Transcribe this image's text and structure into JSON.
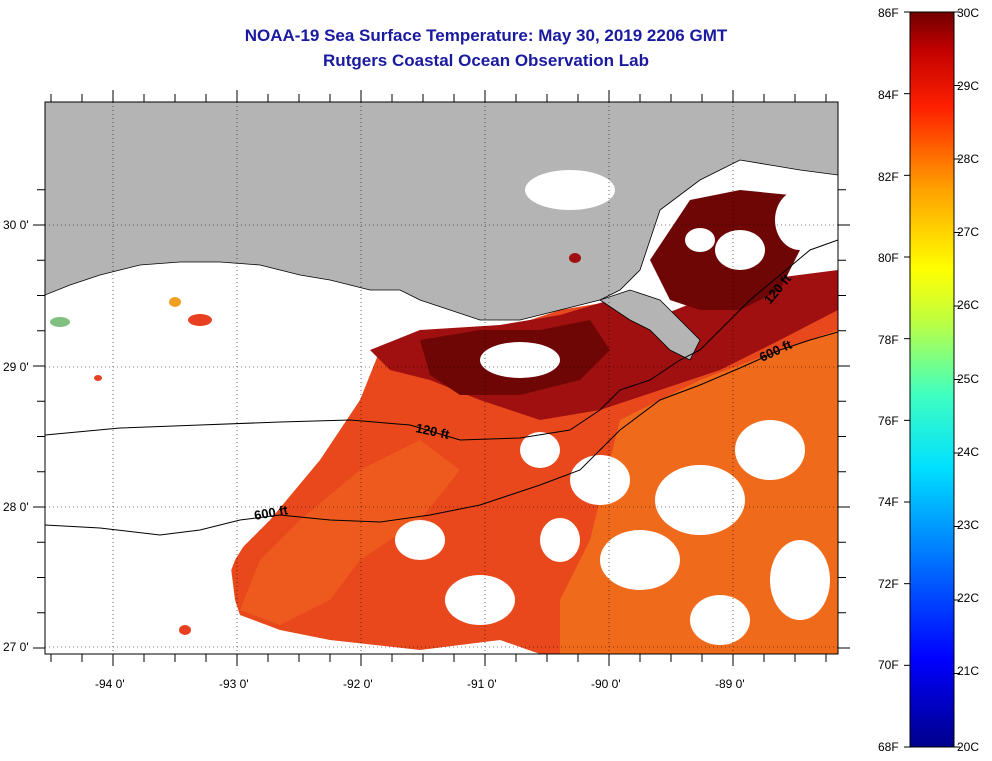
{
  "title": {
    "line1": "NOAA-19 Sea Surface Temperature:  May 30, 2019 2206 GMT",
    "line2": "Rutgers Coastal Ocean Observation Lab"
  },
  "map": {
    "lon_labels": [
      "-94 0'",
      "-93 0'",
      "-92 0'",
      "-91 0'",
      "-90 0'",
      "-89 0'"
    ],
    "lat_labels": [
      "30 0'",
      "29 0'",
      "28 0'",
      "27 0'"
    ],
    "contour_labels": [
      "120 ft",
      "600 ft",
      "120 ft",
      "600 ft"
    ],
    "colors": {
      "land": "#b4b4b4",
      "ocean_warm": "#e8401a",
      "ocean_hot": "#7a0a0a",
      "cloud": "#ffffff"
    }
  },
  "colorbar": {
    "fahrenheit": [
      "86F",
      "84F",
      "82F",
      "80F",
      "78F",
      "76F",
      "74F",
      "72F",
      "70F",
      "68F"
    ],
    "celsius": [
      "30C",
      "29C",
      "28C",
      "27C",
      "26C",
      "25C",
      "24C",
      "23C",
      "22C",
      "21C",
      "20C"
    ],
    "min_c": 20,
    "max_c": 30
  }
}
